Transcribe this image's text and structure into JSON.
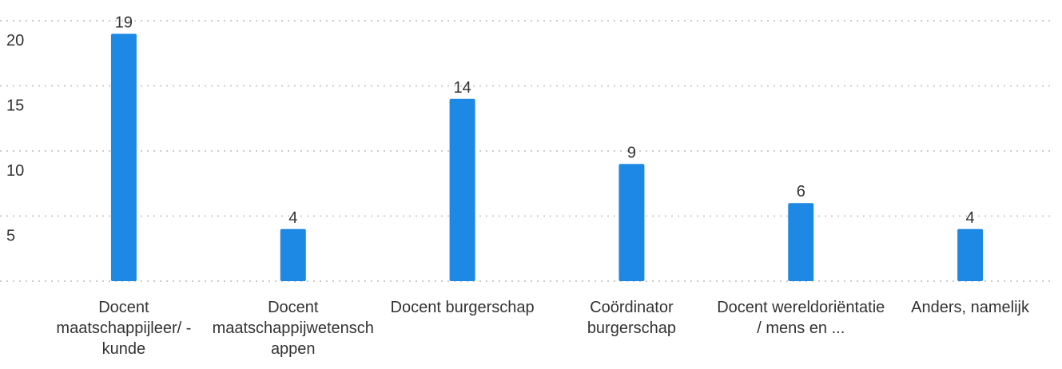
{
  "chart_data": {
    "type": "bar",
    "categories": [
      "Docent maatschappijleer/ -kunde",
      "Docent maatschappijwetenschappen",
      "Docent burgerschap",
      "Coördinator burgerschap",
      "Docent wereldoriëntatie / mens en ...",
      "Anders, namelijk"
    ],
    "values": [
      19,
      4,
      14,
      9,
      6,
      4
    ],
    "color": "#1e88e5",
    "ylim": [
      0,
      20
    ],
    "yticks": [
      5,
      10,
      15,
      20
    ],
    "grid": true
  }
}
